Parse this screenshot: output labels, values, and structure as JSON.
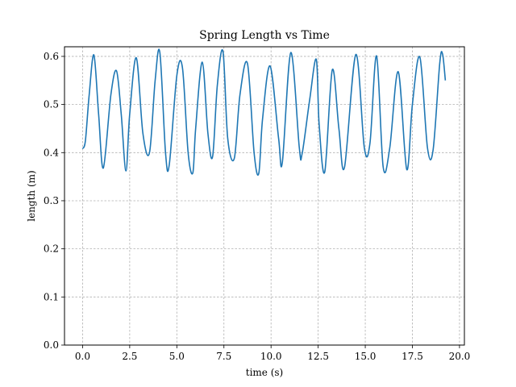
{
  "chart_data": {
    "type": "line",
    "title": "Spring Length vs Time",
    "xlabel": "time (s)",
    "ylabel": "length (m)",
    "xlim": [
      -0.96,
      20.26
    ],
    "ylim": [
      0.0,
      0.62
    ],
    "xticks": [
      "0.0",
      "2.5",
      "5.0",
      "7.5",
      "10.0",
      "12.5",
      "15.0",
      "17.5",
      "20.0"
    ],
    "xtick_values": [
      0.0,
      2.5,
      5.0,
      7.5,
      10.0,
      12.5,
      15.0,
      17.5,
      20.0
    ],
    "yticks": [
      "0.0",
      "0.1",
      "0.2",
      "0.3",
      "0.4",
      "0.5",
      "0.6"
    ],
    "ytick_values": [
      0.0,
      0.1,
      0.2,
      0.3,
      0.4,
      0.5,
      0.6
    ],
    "grid": true,
    "color": "#1f77b4",
    "series": [
      {
        "x": [
          0.0,
          0.15,
          0.35,
          0.6,
          0.85,
          1.1,
          1.5,
          1.8,
          2.05,
          2.3,
          2.5,
          2.85,
          3.2,
          3.55,
          3.85,
          4.1,
          4.4,
          4.6,
          5.0,
          5.3,
          5.6,
          5.85,
          6.0,
          6.35,
          6.65,
          6.9,
          7.15,
          7.45,
          7.7,
          8.05,
          8.35,
          8.75,
          9.1,
          9.35,
          9.55,
          9.95,
          10.4,
          10.6,
          11.05,
          11.5,
          11.65,
          12.05,
          12.4,
          12.55,
          12.85,
          13.25,
          13.6,
          13.9,
          14.5,
          14.95,
          15.25,
          15.6,
          15.95,
          16.3,
          16.75,
          17.2,
          17.5,
          17.9,
          18.3,
          18.6,
          18.95,
          19.1,
          19.25
        ],
        "y": [
          0.408,
          0.425,
          0.52,
          0.603,
          0.48,
          0.368,
          0.52,
          0.57,
          0.48,
          0.362,
          0.48,
          0.597,
          0.44,
          0.4,
          0.55,
          0.608,
          0.4,
          0.375,
          0.56,
          0.576,
          0.4,
          0.358,
          0.45,
          0.588,
          0.44,
          0.392,
          0.54,
          0.61,
          0.43,
          0.388,
          0.52,
          0.585,
          0.4,
          0.357,
          0.47,
          0.58,
          0.43,
          0.38,
          0.608,
          0.41,
          0.398,
          0.51,
          0.594,
          0.46,
          0.36,
          0.572,
          0.45,
          0.37,
          0.604,
          0.41,
          0.42,
          0.601,
          0.37,
          0.41,
          0.568,
          0.365,
          0.5,
          0.598,
          0.41,
          0.406,
          0.585,
          0.605,
          0.55
        ]
      }
    ]
  }
}
